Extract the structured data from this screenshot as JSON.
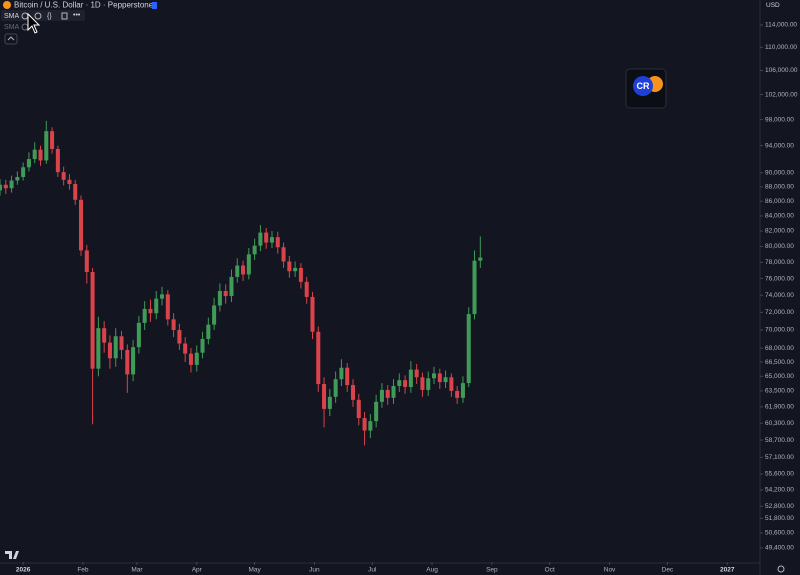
{
  "chart_data": {
    "type": "candlestick",
    "title": "Bitcoin / U.S. Dollar · 1D · Pepperstone",
    "indicators": [
      "SMA",
      "SMA"
    ],
    "currency": "USD",
    "logo_text": "CR",
    "log_scale": true,
    "grid": false,
    "up_color": "#3f9b57",
    "down_color": "#d9434a",
    "xlim": [
      -12,
      382
    ],
    "xticks": [
      {
        "value": 0,
        "label": "2026"
      },
      {
        "value": 31,
        "label": "Feb"
      },
      {
        "value": 59,
        "label": "Mar"
      },
      {
        "value": 90,
        "label": "Apr"
      },
      {
        "value": 120,
        "label": "May"
      },
      {
        "value": 151,
        "label": "Jun"
      },
      {
        "value": 181,
        "label": "Jul"
      },
      {
        "value": 212,
        "label": "Aug"
      },
      {
        "value": 243,
        "label": "Sep"
      },
      {
        "value": 273,
        "label": "Oct"
      },
      {
        "value": 304,
        "label": "Nov"
      },
      {
        "value": 334,
        "label": "Dec"
      },
      {
        "value": 365,
        "label": "2027"
      }
    ],
    "ylim": [
      48300,
      118650
    ],
    "yticks": [
      {
        "value": 114000,
        "label": "114,000.00"
      },
      {
        "value": 110000,
        "label": "110,000.00"
      },
      {
        "value": 106000,
        "label": "106,000.00"
      },
      {
        "value": 102000,
        "label": "102,000.00"
      },
      {
        "value": 98000,
        "label": "98,000.00"
      },
      {
        "value": 94000,
        "label": "94,000.00"
      },
      {
        "value": 90000,
        "label": "90,000.00"
      },
      {
        "value": 88000,
        "label": "88,000.00"
      },
      {
        "value": 86000,
        "label": "86,000.00"
      },
      {
        "value": 84000,
        "label": "84,000.00"
      },
      {
        "value": 82000,
        "label": "82,000.00"
      },
      {
        "value": 80000,
        "label": "80,000.00"
      },
      {
        "value": 78000,
        "label": "78,000.00"
      },
      {
        "value": 76000,
        "label": "76,000.00"
      },
      {
        "value": 74000,
        "label": "74,000.00"
      },
      {
        "value": 72000,
        "label": "72,000.00"
      },
      {
        "value": 70000,
        "label": "70,000.00"
      },
      {
        "value": 68000,
        "label": "68,000.00"
      },
      {
        "value": 66500,
        "label": "66,500.00"
      },
      {
        "value": 65000,
        "label": "65,000.00"
      },
      {
        "value": 63500,
        "label": "63,500.00"
      },
      {
        "value": 61900,
        "label": "61,900.00"
      },
      {
        "value": 60300,
        "label": "60,300.00"
      },
      {
        "value": 58700,
        "label": "58,700.00"
      },
      {
        "value": 57100,
        "label": "57,100.00"
      },
      {
        "value": 55600,
        "label": "55,600.00"
      },
      {
        "value": 54200,
        "label": "54,200.00"
      },
      {
        "value": 52800,
        "label": "52,800.00"
      },
      {
        "value": 51800,
        "label": "51,800.00"
      },
      {
        "value": 50600,
        "label": "50,600.00"
      },
      {
        "value": 49400,
        "label": "49,400.00"
      }
    ],
    "x": [
      -12,
      -9,
      -6,
      -3,
      0,
      3,
      6,
      9,
      12,
      15,
      18,
      21,
      24,
      27,
      30,
      33,
      36,
      39,
      42,
      45,
      48,
      51,
      54,
      57,
      60,
      63,
      66,
      69,
      72,
      75,
      78,
      81,
      84,
      87,
      90,
      93,
      96,
      99,
      102,
      105,
      108,
      111,
      114,
      117,
      120,
      123,
      126,
      129,
      132,
      135,
      138,
      141,
      144,
      147,
      150,
      153,
      156,
      159,
      162,
      165,
      168,
      171,
      174,
      177,
      180,
      183,
      186,
      189,
      192,
      195,
      198,
      201,
      204,
      207,
      210,
      213,
      216,
      219,
      222,
      225,
      228,
      231,
      234,
      237
    ],
    "open": [
      87500,
      88300,
      87800,
      88900,
      89400,
      90800,
      92000,
      93400,
      91800,
      96200,
      93500,
      90100,
      89000,
      88400,
      86200,
      79500,
      76800,
      65800,
      70200,
      68600,
      66900,
      69300,
      67800,
      65200,
      68100,
      70800,
      72400,
      71900,
      73600,
      74100,
      71200,
      70000,
      68500,
      67400,
      66200,
      67500,
      69000,
      70600,
      72800,
      74500,
      73900,
      76200,
      77600,
      76500,
      79000,
      80100,
      81800,
      80500,
      81200,
      79900,
      78100,
      76900,
      77300,
      75600,
      73800,
      69800,
      64200,
      61700,
      62900,
      64700,
      65900,
      64100,
      62600,
      60800,
      59600,
      60500,
      62400,
      63600,
      62800,
      64000,
      64600,
      63900,
      65700,
      64900,
      63600,
      64800,
      65300,
      64400,
      64900,
      63500,
      62800,
      64300,
      71800,
      78200
    ],
    "high": [
      89100,
      89000,
      89600,
      90200,
      91500,
      93000,
      94500,
      94000,
      97800,
      96800,
      94000,
      90900,
      89800,
      89000,
      86800,
      80200,
      77300,
      71500,
      71000,
      69400,
      70200,
      69900,
      68400,
      68900,
      71600,
      73300,
      73500,
      74500,
      75000,
      74600,
      71900,
      70700,
      69200,
      68000,
      68300,
      69800,
      71400,
      73700,
      75400,
      75300,
      77100,
      78500,
      78200,
      79800,
      81000,
      82800,
      82400,
      82000,
      81900,
      80500,
      78800,
      78100,
      77900,
      76200,
      74400,
      70400,
      64900,
      63700,
      65500,
      66800,
      66400,
      64700,
      63200,
      61400,
      61200,
      63100,
      64300,
      64100,
      64700,
      65300,
      65100,
      66600,
      66300,
      65400,
      65500,
      66000,
      65800,
      65600,
      65300,
      64000,
      65000,
      72600,
      79500,
      81300
    ],
    "low": [
      86800,
      87000,
      87200,
      88300,
      88900,
      90200,
      91400,
      91000,
      91300,
      92800,
      89400,
      88200,
      87600,
      85500,
      78800,
      75400,
      60200,
      65000,
      67500,
      65800,
      66000,
      66800,
      63300,
      64500,
      67400,
      70000,
      70900,
      71200,
      72800,
      70500,
      69200,
      67800,
      66500,
      65400,
      65500,
      66900,
      68400,
      70000,
      72100,
      73000,
      73200,
      75500,
      75700,
      75900,
      78300,
      79400,
      79700,
      79800,
      79100,
      77300,
      76100,
      76200,
      74800,
      73000,
      69000,
      63400,
      59900,
      61000,
      62300,
      64000,
      63400,
      61900,
      60100,
      58200,
      58900,
      59900,
      61800,
      62100,
      62200,
      63400,
      63200,
      63300,
      64200,
      62900,
      63000,
      64200,
      63700,
      63800,
      62900,
      62200,
      62300,
      63900,
      71200,
      77300
    ],
    "close": [
      88300,
      87800,
      88900,
      89400,
      90800,
      92000,
      93400,
      91800,
      96200,
      93500,
      90100,
      89000,
      88400,
      86200,
      79500,
      76800,
      65800,
      70200,
      68600,
      66900,
      69300,
      67800,
      65200,
      68100,
      70800,
      72400,
      71900,
      73600,
      74100,
      71200,
      70000,
      68500,
      67400,
      66200,
      67500,
      69000,
      70600,
      72800,
      74500,
      73900,
      76200,
      77600,
      76500,
      79000,
      80100,
      81800,
      80500,
      81200,
      79900,
      78100,
      76900,
      77300,
      75600,
      73800,
      69800,
      64200,
      61700,
      62900,
      64700,
      65900,
      64100,
      62600,
      60800,
      59600,
      60500,
      62400,
      63600,
      62800,
      64000,
      64600,
      63900,
      65700,
      64900,
      63600,
      64800,
      65300,
      64400,
      64900,
      63500,
      62800,
      64300,
      71800,
      78200,
      78600
    ]
  }
}
